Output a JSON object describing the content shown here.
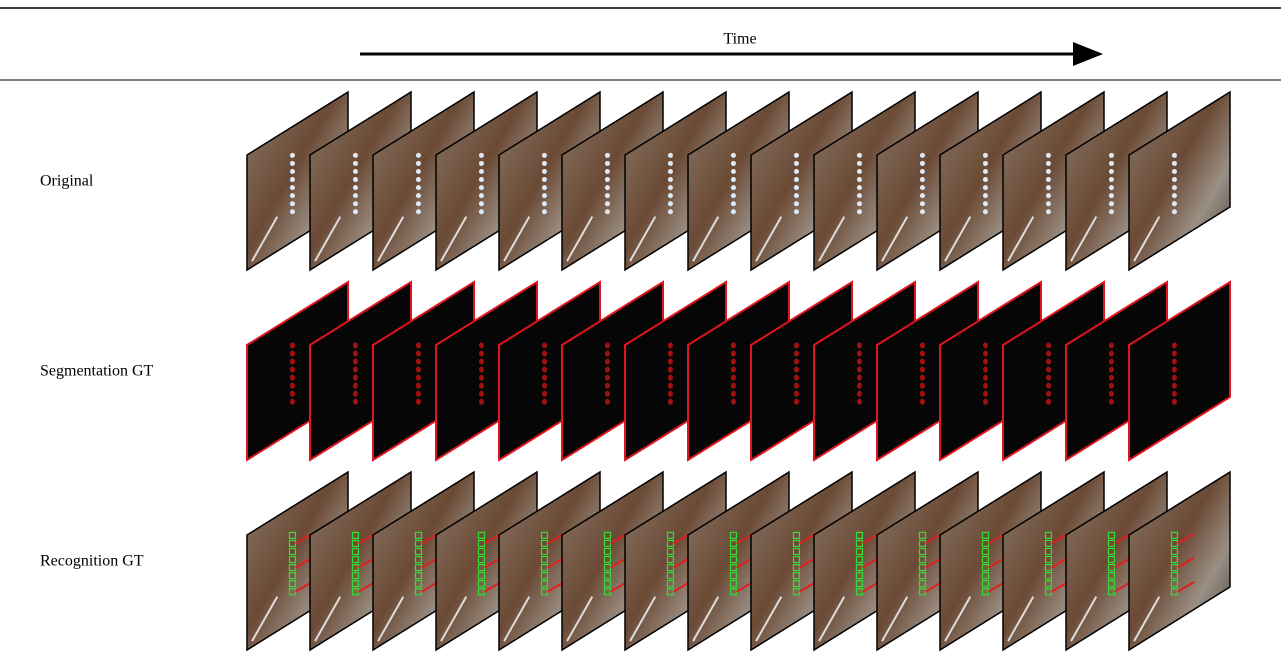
{
  "header": {
    "title": "Time"
  },
  "rows": [
    {
      "label": "Original"
    },
    {
      "label": "Segmentation GT"
    },
    {
      "label": "Recognition GT"
    }
  ]
}
